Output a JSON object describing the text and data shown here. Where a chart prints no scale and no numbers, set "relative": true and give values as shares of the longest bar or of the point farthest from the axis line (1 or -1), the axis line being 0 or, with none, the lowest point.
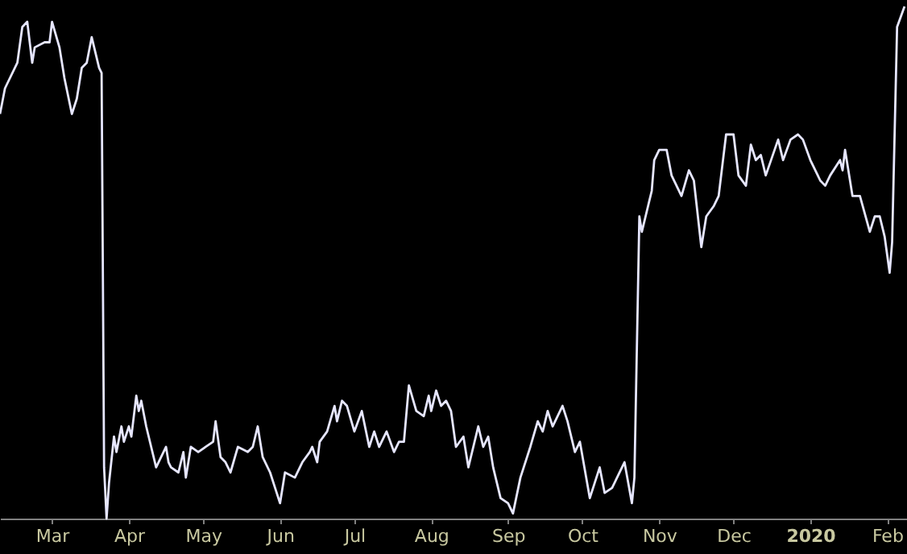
{
  "chart_data": {
    "type": "line",
    "relative": true,
    "grid": false,
    "marker": "none",
    "line_style": "solid",
    "xlim": [
      "2019-02-08",
      "2020-02-09"
    ],
    "xticks": [
      {
        "value": "2019-03-01",
        "label": "Mar"
      },
      {
        "value": "2019-04-01",
        "label": "Apr"
      },
      {
        "value": "2019-05-01",
        "label": "May"
      },
      {
        "value": "2019-06-01",
        "label": "Jun"
      },
      {
        "value": "2019-07-01",
        "label": "Jul"
      },
      {
        "value": "2019-08-01",
        "label": "Aug"
      },
      {
        "value": "2019-09-01",
        "label": "Sep"
      },
      {
        "value": "2019-10-01",
        "label": "Oct"
      },
      {
        "value": "2019-11-01",
        "label": "Nov"
      },
      {
        "value": "2019-12-01",
        "label": "Dec"
      },
      {
        "value": "2020-01-01",
        "label": "2020"
      },
      {
        "value": "2020-02-01",
        "label": "Feb"
      }
    ],
    "x": [
      "2019-02-08",
      "2019-02-10",
      "2019-02-15",
      "2019-02-17",
      "2019-02-19",
      "2019-02-21",
      "2019-02-22",
      "2019-02-26",
      "2019-02-28",
      "2019-03-01",
      "2019-03-04",
      "2019-03-06",
      "2019-03-09",
      "2019-03-11",
      "2019-03-13",
      "2019-03-15",
      "2019-03-17",
      "2019-03-18",
      "2019-03-20",
      "2019-03-21",
      "2019-03-22",
      "2019-03-23",
      "2019-03-24",
      "2019-03-26",
      "2019-03-27",
      "2019-03-29",
      "2019-03-30",
      "2019-04-01",
      "2019-04-02",
      "2019-04-04",
      "2019-04-05",
      "2019-04-06",
      "2019-04-08",
      "2019-04-09",
      "2019-04-12",
      "2019-04-14",
      "2019-04-16",
      "2019-04-17",
      "2019-04-18",
      "2019-04-21",
      "2019-04-23",
      "2019-04-24",
      "2019-04-26",
      "2019-04-29",
      "2019-05-02",
      "2019-05-05",
      "2019-05-06",
      "2019-05-08",
      "2019-05-10",
      "2019-05-12",
      "2019-05-15",
      "2019-05-19",
      "2019-05-21",
      "2019-05-23",
      "2019-05-25",
      "2019-05-28",
      "2019-05-30",
      "2019-06-01",
      "2019-06-03",
      "2019-06-07",
      "2019-06-10",
      "2019-06-13",
      "2019-06-14",
      "2019-06-16",
      "2019-06-17",
      "2019-06-20",
      "2019-06-23",
      "2019-06-24",
      "2019-06-26",
      "2019-06-28",
      "2019-07-01",
      "2019-07-04",
      "2019-07-07",
      "2019-07-09",
      "2019-07-11",
      "2019-07-14",
      "2019-07-17",
      "2019-07-19",
      "2019-07-21",
      "2019-07-23",
      "2019-07-26",
      "2019-07-29",
      "2019-07-31",
      "2019-08-01",
      "2019-08-03",
      "2019-08-05",
      "2019-08-07",
      "2019-08-09",
      "2019-08-11",
      "2019-08-14",
      "2019-08-16",
      "2019-08-20",
      "2019-08-22",
      "2019-08-24",
      "2019-08-26",
      "2019-08-29",
      "2019-09-01",
      "2019-09-03",
      "2019-09-06",
      "2019-09-10",
      "2019-09-13",
      "2019-09-15",
      "2019-09-17",
      "2019-09-19",
      "2019-09-23",
      "2019-09-25",
      "2019-09-28",
      "2019-09-30",
      "2019-10-04",
      "2019-10-08",
      "2019-10-10",
      "2019-10-13",
      "2019-10-17",
      "2019-10-18",
      "2019-10-21",
      "2019-10-22",
      "2019-10-24",
      "2019-10-25",
      "2019-10-28",
      "2019-10-29",
      "2019-10-30",
      "2019-11-01",
      "2019-11-04",
      "2019-11-06",
      "2019-11-08",
      "2019-11-10",
      "2019-11-13",
      "2019-11-15",
      "2019-11-18",
      "2019-11-20",
      "2019-11-23",
      "2019-11-25",
      "2019-11-28",
      "2019-12-01",
      "2019-12-03",
      "2019-12-06",
      "2019-12-08",
      "2019-12-10",
      "2019-12-12",
      "2019-12-14",
      "2019-12-19",
      "2019-12-21",
      "2019-12-24",
      "2019-12-27",
      "2019-12-29",
      "2020-01-01",
      "2020-01-05",
      "2020-01-07",
      "2020-01-09",
      "2020-01-13",
      "2020-01-14",
      "2020-01-15",
      "2020-01-18",
      "2020-01-21",
      "2020-01-25",
      "2020-01-27",
      "2020-01-29",
      "2020-01-31",
      "2020-02-02",
      "2020-02-03",
      "2020-02-05",
      "2020-02-08"
    ],
    "series": [
      {
        "color": "#e6e6ff",
        "values": [
          0.79,
          0.84,
          0.89,
          0.96,
          0.97,
          0.89,
          0.92,
          0.93,
          0.93,
          0.97,
          0.92,
          0.86,
          0.79,
          0.82,
          0.88,
          0.89,
          0.94,
          0.92,
          0.88,
          0.87,
          0.1,
          0,
          0.07,
          0.16,
          0.13,
          0.18,
          0.15,
          0.18,
          0.16,
          0.24,
          0.21,
          0.23,
          0.18,
          0.16,
          0.1,
          0.12,
          0.14,
          0.11,
          0.1,
          0.09,
          0.13,
          0.08,
          0.14,
          0.13,
          0.14,
          0.15,
          0.19,
          0.12,
          0.11,
          0.09,
          0.14,
          0.13,
          0.14,
          0.18,
          0.12,
          0.09,
          0.06,
          0.03,
          0.09,
          0.08,
          0.11,
          0.13,
          0.14,
          0.11,
          0.15,
          0.17,
          0.22,
          0.19,
          0.23,
          0.22,
          0.17,
          0.21,
          0.14,
          0.17,
          0.14,
          0.17,
          0.13,
          0.15,
          0.15,
          0.26,
          0.21,
          0.2,
          0.24,
          0.21,
          0.25,
          0.22,
          0.23,
          0.21,
          0.14,
          0.16,
          0.1,
          0.18,
          0.14,
          0.16,
          0.1,
          0.04,
          0.03,
          0.01,
          0.08,
          0.14,
          0.19,
          0.17,
          0.21,
          0.18,
          0.22,
          0.19,
          0.13,
          0.15,
          0.04,
          0.1,
          0.05,
          0.06,
          0.1,
          0.11,
          0.03,
          0.08,
          0.59,
          0.56,
          0.62,
          0.64,
          0.7,
          0.72,
          0.72,
          0.67,
          0.65,
          0.63,
          0.68,
          0.66,
          0.53,
          0.59,
          0.61,
          0.63,
          0.75,
          0.75,
          0.67,
          0.65,
          0.73,
          0.7,
          0.71,
          0.67,
          0.74,
          0.7,
          0.74,
          0.75,
          0.74,
          0.7,
          0.66,
          0.65,
          0.67,
          0.7,
          0.68,
          0.72,
          0.63,
          0.63,
          0.56,
          0.59,
          0.59,
          0.55,
          0.48,
          0.54,
          0.96,
          1.0
        ]
      }
    ]
  }
}
